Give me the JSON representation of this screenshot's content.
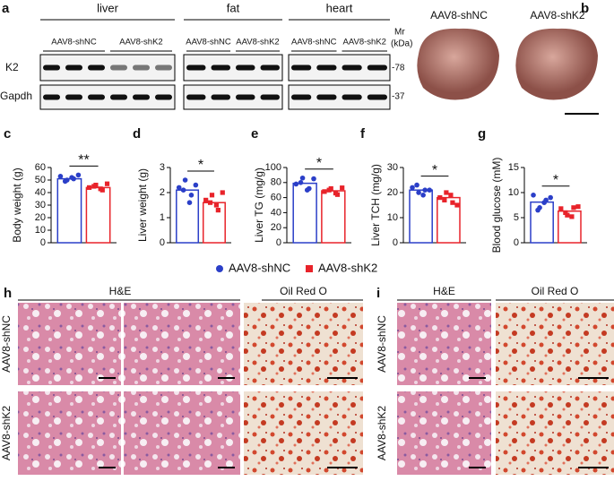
{
  "panel_labels": [
    "a",
    "b",
    "c",
    "d",
    "e",
    "f",
    "g",
    "h",
    "i"
  ],
  "blot": {
    "tissues": [
      "liver",
      "fat",
      "heart"
    ],
    "lanes": [
      "AAV8-shNC",
      "AAV8-shK2"
    ],
    "mr": "Mr",
    "mr_unit": "(kDa)",
    "proteins": [
      {
        "name": "K2",
        "marker": "-78"
      },
      {
        "name": "Gapdh",
        "marker": "-37"
      }
    ]
  },
  "photo": {
    "labels": [
      "AAV8-shNC",
      "AAV8-shK2"
    ]
  },
  "legend": [
    {
      "name": "AAV8-shNC",
      "color": "#2b3fc8"
    },
    {
      "name": "AAV8-shK2",
      "color": "#e8232a"
    }
  ],
  "chart_data": [
    {
      "type": "bar",
      "ylabel": "Body weight  (g)",
      "ylim": [
        0,
        60
      ],
      "yticks": [
        0,
        10,
        20,
        30,
        40,
        50,
        60
      ],
      "values": [
        51,
        44
      ],
      "points": [
        [
          53,
          50,
          51,
          49,
          52,
          54
        ],
        [
          44,
          46,
          42,
          45,
          43,
          47
        ]
      ],
      "significance": "**"
    },
    {
      "type": "bar",
      "ylabel": "Liver weight (g)",
      "ylim": [
        0,
        3
      ],
      "yticks": [
        0,
        1,
        2,
        3
      ],
      "values": [
        2.1,
        1.6
      ],
      "points": [
        [
          2.2,
          2.5,
          1.9,
          2.1,
          1.6,
          2.3
        ],
        [
          1.7,
          1.9,
          1.3,
          1.6,
          1.5,
          2.0
        ]
      ],
      "significance": "*"
    },
    {
      "type": "bar",
      "ylabel": "Liver TG (mg/g)",
      "ylim": [
        0,
        100
      ],
      "yticks": [
        0,
        20,
        40,
        60,
        80,
        100
      ],
      "values": [
        79,
        69
      ],
      "points": [
        [
          78,
          86,
          72,
          80,
          70,
          85
        ],
        [
          68,
          72,
          64,
          70,
          66,
          73
        ]
      ],
      "significance": "*"
    },
    {
      "type": "bar",
      "ylabel": "Liver TCH (mg/g)",
      "ylim": [
        0,
        30
      ],
      "yticks": [
        0,
        10,
        20,
        30
      ],
      "values": [
        21,
        18
      ],
      "points": [
        [
          22,
          20,
          21,
          23,
          19,
          21
        ],
        [
          18,
          20,
          16,
          17,
          19,
          15
        ]
      ],
      "significance": "*"
    },
    {
      "type": "bar",
      "ylabel": "Blood glucose (mM)",
      "ylim": [
        0,
        15
      ],
      "yticks": [
        0,
        5,
        10,
        15
      ],
      "values": [
        8.1,
        6.3
      ],
      "points": [
        [
          9.5,
          7.0,
          8.5,
          6.5,
          8.0,
          9.0
        ],
        [
          6.8,
          5.5,
          7.0,
          6.0,
          5.2,
          7.2
        ]
      ],
      "significance": "*"
    }
  ],
  "histology": [
    {
      "columns": [
        "H&E",
        "Oil Red O"
      ],
      "rows": [
        "AAV8-shNC",
        "AAV8-shK2"
      ]
    },
    {
      "columns": [
        "H&E",
        "Oil Red O"
      ],
      "rows": [
        "AAV8-shNC",
        "AAV8-shK2"
      ]
    }
  ]
}
